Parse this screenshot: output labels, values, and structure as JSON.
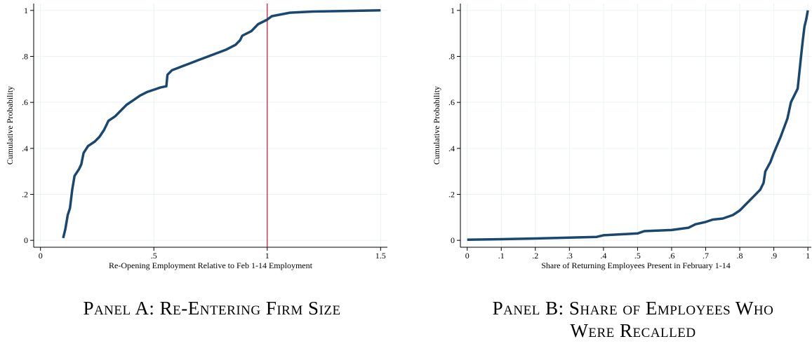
{
  "chart_data": [
    {
      "type": "line",
      "caption": "Panel A: Re-Entering Firm Size",
      "xlabel": "Re-Opening Employment Relative to Feb 1-14 Employment",
      "ylabel": "Cumulative Probability",
      "color": "#1a476f",
      "grid": true,
      "vline": 1,
      "vline_color": "#c8102e",
      "xlim": [
        -0.03,
        1.53
      ],
      "ylim": [
        -0.03,
        1.03
      ],
      "xticks": [
        0,
        {
          "value": 0.5,
          "label": ".5"
        },
        1,
        1.5
      ],
      "yticks": [
        0,
        {
          "value": 0.2,
          "label": ".2"
        },
        {
          "value": 0.4,
          "label": ".4"
        },
        {
          "value": 0.6,
          "label": ".6"
        },
        {
          "value": 0.8,
          "label": ".8"
        },
        1
      ],
      "x": [
        0.1,
        0.11,
        0.12,
        0.13,
        0.14,
        0.15,
        0.17,
        0.18,
        0.19,
        0.21,
        0.24,
        0.26,
        0.28,
        0.3,
        0.33,
        0.36,
        0.38,
        0.41,
        0.44,
        0.47,
        0.5,
        0.53,
        0.555,
        0.56,
        0.58,
        0.62,
        0.66,
        0.7,
        0.74,
        0.78,
        0.82,
        0.86,
        0.88,
        0.89,
        0.93,
        0.96,
        1.0,
        1.02,
        1.1,
        1.2,
        1.5
      ],
      "values": [
        0.01,
        0.05,
        0.11,
        0.14,
        0.22,
        0.28,
        0.31,
        0.33,
        0.38,
        0.41,
        0.43,
        0.45,
        0.48,
        0.52,
        0.54,
        0.57,
        0.59,
        0.61,
        0.63,
        0.645,
        0.655,
        0.665,
        0.67,
        0.72,
        0.74,
        0.755,
        0.77,
        0.785,
        0.8,
        0.815,
        0.83,
        0.85,
        0.87,
        0.89,
        0.91,
        0.94,
        0.96,
        0.975,
        0.99,
        0.995,
        1.0
      ]
    },
    {
      "type": "line",
      "caption": "Panel B: Share of Employees Who Were Recalled",
      "xlabel": "Share of Returning Employees Present in February 1-14",
      "ylabel": "Cumulative Probability",
      "color": "#1a476f",
      "grid": true,
      "xlim": [
        -0.02,
        1.01
      ],
      "ylim": [
        -0.03,
        1.03
      ],
      "xticks": [
        0,
        {
          "value": 0.1,
          "label": ".1"
        },
        {
          "value": 0.2,
          "label": ".2"
        },
        {
          "value": 0.3,
          "label": ".3"
        },
        {
          "value": 0.4,
          "label": ".4"
        },
        {
          "value": 0.5,
          "label": ".5"
        },
        {
          "value": 0.6,
          "label": ".6"
        },
        {
          "value": 0.7,
          "label": ".7"
        },
        {
          "value": 0.8,
          "label": ".8"
        },
        {
          "value": 0.9,
          "label": ".9"
        },
        1
      ],
      "yticks": [
        0,
        {
          "value": 0.2,
          "label": ".2"
        },
        {
          "value": 0.4,
          "label": ".4"
        },
        {
          "value": 0.6,
          "label": ".6"
        },
        {
          "value": 0.8,
          "label": ".8"
        },
        1
      ],
      "x": [
        0,
        0.1,
        0.2,
        0.3,
        0.38,
        0.4,
        0.5,
        0.52,
        0.6,
        0.65,
        0.67,
        0.7,
        0.72,
        0.75,
        0.78,
        0.8,
        0.82,
        0.84,
        0.86,
        0.87,
        0.875,
        0.89,
        0.9,
        0.92,
        0.94,
        0.95,
        0.97,
        0.975,
        0.98,
        0.985,
        0.99,
        0.995,
        1.0
      ],
      "values": [
        0.003,
        0.005,
        0.008,
        0.012,
        0.015,
        0.022,
        0.03,
        0.04,
        0.045,
        0.055,
        0.07,
        0.08,
        0.09,
        0.095,
        0.11,
        0.13,
        0.16,
        0.19,
        0.22,
        0.25,
        0.3,
        0.34,
        0.38,
        0.45,
        0.53,
        0.6,
        0.66,
        0.73,
        0.8,
        0.87,
        0.93,
        0.96,
        1.0
      ]
    }
  ]
}
